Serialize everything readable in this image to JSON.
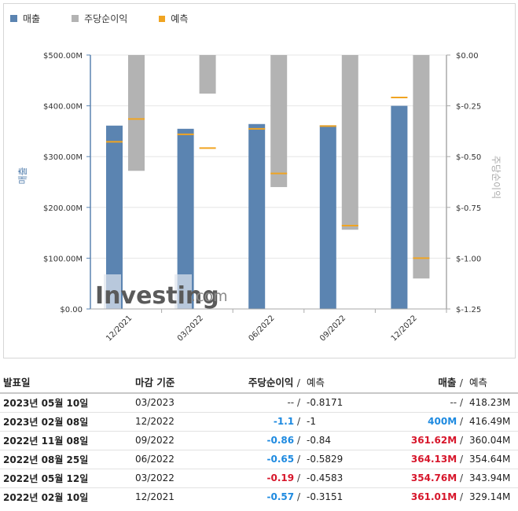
{
  "legend": {
    "revenue": "매출",
    "eps": "주당순이익",
    "forecast": "예측"
  },
  "colors": {
    "revenue": "#5b84b1",
    "eps": "#b3b3b3",
    "forecast": "#f0a422",
    "blue_text": "#1e8ae0",
    "red_text": "#d7162b"
  },
  "watermark": {
    "brand": "Investing",
    "suffix": ".com"
  },
  "chart_data": {
    "type": "bar",
    "categories": [
      "12/2021",
      "03/2022",
      "06/2022",
      "09/2022",
      "12/2022"
    ],
    "y_left": {
      "label": "매출",
      "ticks": [
        "$0.00",
        "$100.00M",
        "$200.00M",
        "$300.00M",
        "$400.00M",
        "$500.00M"
      ],
      "range": [
        0,
        500
      ]
    },
    "y_right": {
      "label": "주당순이익",
      "ticks": [
        "$0.00",
        "$-0.25",
        "$-0.50",
        "$-0.75",
        "$-1.00",
        "$-1.25"
      ],
      "range": [
        0,
        -1.25
      ]
    },
    "series": [
      {
        "name": "매출",
        "axis": "left",
        "values": [
          361.01,
          354.76,
          364.13,
          361.62,
          400
        ]
      },
      {
        "name": "주당순이익",
        "axis": "right",
        "values": [
          -0.57,
          -0.19,
          -0.65,
          -0.86,
          -1.1
        ]
      }
    ],
    "forecast": {
      "revenue": [
        329.14,
        343.94,
        354.64,
        360.04,
        416.49
      ],
      "eps": [
        -0.3151,
        -0.4583,
        -0.5829,
        -0.84,
        -1.0
      ]
    }
  },
  "table": {
    "headers": {
      "date": "발표일",
      "period": "마감 기준",
      "eps": "주당순이익",
      "eps_forecast": "예측",
      "revenue": "매출",
      "revenue_forecast": "예측",
      "sep": "/"
    },
    "rows": [
      {
        "date": "2023년 05월 10일",
        "period": "03/2023",
        "eps": "--",
        "eps_color": "neutral",
        "eps_forecast": "-0.8171",
        "revenue": "--",
        "rev_color": "neutral",
        "revenue_forecast": "418.23M"
      },
      {
        "date": "2023년 02월 08일",
        "period": "12/2022",
        "eps": "-1.1",
        "eps_color": "blue",
        "eps_forecast": "-1",
        "revenue": "400M",
        "rev_color": "blue",
        "revenue_forecast": "416.49M"
      },
      {
        "date": "2022년 11월 08일",
        "period": "09/2022",
        "eps": "-0.86",
        "eps_color": "blue",
        "eps_forecast": "-0.84",
        "revenue": "361.62M",
        "rev_color": "red",
        "revenue_forecast": "360.04M"
      },
      {
        "date": "2022년 08월 25일",
        "period": "06/2022",
        "eps": "-0.65",
        "eps_color": "blue",
        "eps_forecast": "-0.5829",
        "revenue": "364.13M",
        "rev_color": "red",
        "revenue_forecast": "354.64M"
      },
      {
        "date": "2022년 05월 12일",
        "period": "03/2022",
        "eps": "-0.19",
        "eps_color": "red",
        "eps_forecast": "-0.4583",
        "revenue": "354.76M",
        "rev_color": "red",
        "revenue_forecast": "343.94M"
      },
      {
        "date": "2022년 02월 10일",
        "period": "12/2021",
        "eps": "-0.57",
        "eps_color": "blue",
        "eps_forecast": "-0.3151",
        "revenue": "361.01M",
        "rev_color": "red",
        "revenue_forecast": "329.14M"
      }
    ]
  }
}
